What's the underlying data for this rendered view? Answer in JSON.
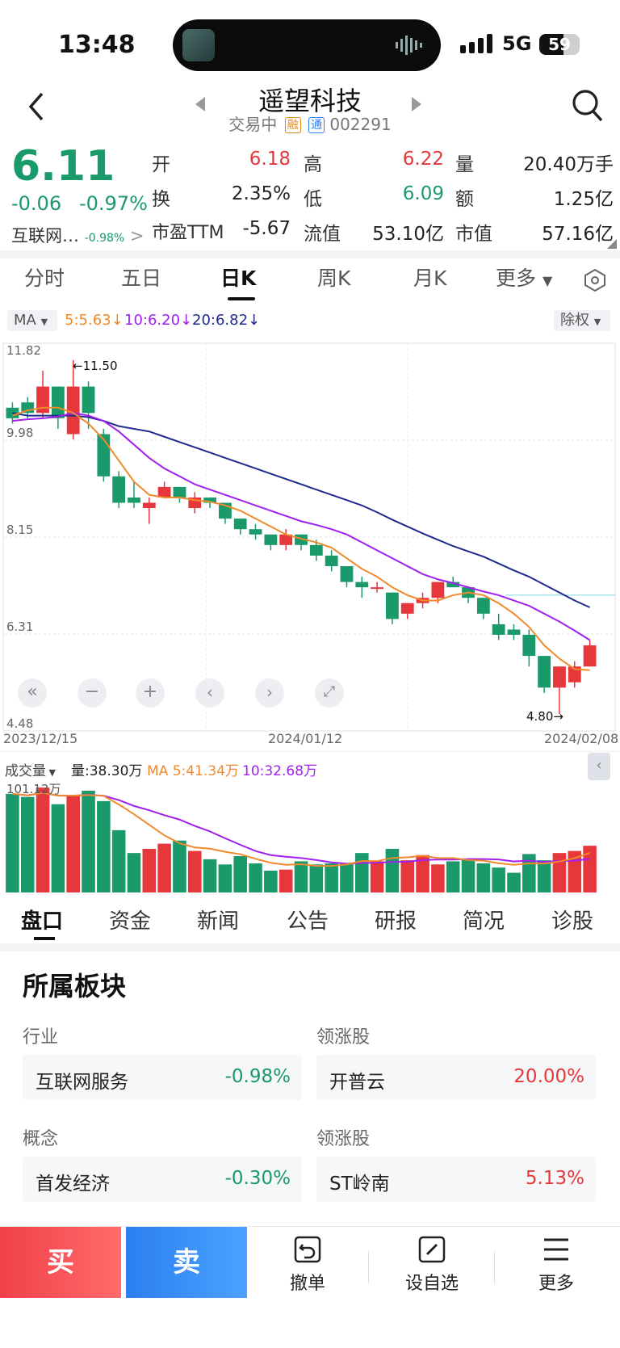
{
  "status": {
    "time": "13:48",
    "network": "5G",
    "battery": "59"
  },
  "header": {
    "title": "遥望科技",
    "state": "交易中",
    "badge_rong": "融",
    "badge_tong": "通",
    "code": "002291"
  },
  "quote": {
    "price": "6.11",
    "change": "-0.06",
    "change_pct": "-0.97%",
    "sector_name": "互联网…",
    "sector_pct": "-0.98%",
    "open_label": "开",
    "open": "6.18",
    "high_label": "高",
    "high": "6.22",
    "volume_label": "量",
    "volume": "20.40万手",
    "turnover_label": "换",
    "turnover": "2.35%",
    "low_label": "低",
    "low": "6.09",
    "amount_label": "额",
    "amount": "1.25亿",
    "pe_label": "市盈TTM",
    "pe": "-5.67",
    "float_cap_label": "流值",
    "float_cap": "53.10亿",
    "market_cap_label": "市值",
    "market_cap": "57.16亿"
  },
  "period_tabs": [
    "分时",
    "五日",
    "日K",
    "周K",
    "月K",
    "更多"
  ],
  "ma_bar": {
    "ma_label": "MA",
    "ma5": "5:5.63",
    "ma10": "10:6.20",
    "ma20": "20:6.82",
    "adjust": "除权"
  },
  "chart_data": {
    "type": "candlestick",
    "y_ticks": [
      "11.82",
      "9.98",
      "8.15",
      "6.31",
      "4.48"
    ],
    "x_ticks": [
      "2023/12/15",
      "2024/01/12",
      "2024/02/08"
    ],
    "high_marker": "11.50",
    "low_marker": "4.80",
    "ylim": [
      4.48,
      11.82
    ],
    "candles": [
      {
        "o": 10.6,
        "c": 10.4,
        "h": 10.7,
        "l": 10.3
      },
      {
        "o": 10.7,
        "c": 10.5,
        "h": 10.8,
        "l": 10.4
      },
      {
        "o": 10.5,
        "c": 11.0,
        "h": 11.3,
        "l": 10.4
      },
      {
        "o": 11.0,
        "c": 10.4,
        "h": 11.0,
        "l": 10.2
      },
      {
        "o": 10.1,
        "c": 11.0,
        "h": 11.5,
        "l": 10.0
      },
      {
        "o": 11.0,
        "c": 10.5,
        "h": 11.1,
        "l": 10.2
      },
      {
        "o": 10.1,
        "c": 9.3,
        "h": 10.2,
        "l": 9.2
      },
      {
        "o": 9.3,
        "c": 8.8,
        "h": 9.4,
        "l": 8.7
      },
      {
        "o": 8.9,
        "c": 8.8,
        "h": 9.2,
        "l": 8.7
      },
      {
        "o": 8.7,
        "c": 8.8,
        "h": 8.9,
        "l": 8.4
      },
      {
        "o": 8.9,
        "c": 9.1,
        "h": 9.2,
        "l": 8.9
      },
      {
        "o": 9.1,
        "c": 8.9,
        "h": 9.1,
        "l": 8.8
      },
      {
        "o": 8.7,
        "c": 8.9,
        "h": 9.0,
        "l": 8.6
      },
      {
        "o": 8.9,
        "c": 8.8,
        "h": 8.9,
        "l": 8.7
      },
      {
        "o": 8.8,
        "c": 8.5,
        "h": 8.8,
        "l": 8.4
      },
      {
        "o": 8.5,
        "c": 8.3,
        "h": 8.5,
        "l": 8.2
      },
      {
        "o": 8.3,
        "c": 8.2,
        "h": 8.4,
        "l": 8.1
      },
      {
        "o": 8.2,
        "c": 8.0,
        "h": 8.2,
        "l": 7.9
      },
      {
        "o": 8.0,
        "c": 8.2,
        "h": 8.3,
        "l": 7.9
      },
      {
        "o": 8.2,
        "c": 8.0,
        "h": 8.2,
        "l": 7.9
      },
      {
        "o": 8.0,
        "c": 7.8,
        "h": 8.1,
        "l": 7.7
      },
      {
        "o": 7.8,
        "c": 7.6,
        "h": 7.9,
        "l": 7.5
      },
      {
        "o": 7.6,
        "c": 7.3,
        "h": 7.6,
        "l": 7.2
      },
      {
        "o": 7.3,
        "c": 7.2,
        "h": 7.4,
        "l": 7.0
      },
      {
        "o": 7.2,
        "c": 7.2,
        "h": 7.3,
        "l": 7.1
      },
      {
        "o": 7.1,
        "c": 6.6,
        "h": 7.1,
        "l": 6.5
      },
      {
        "o": 6.7,
        "c": 6.9,
        "h": 6.9,
        "l": 6.6
      },
      {
        "o": 6.9,
        "c": 7.0,
        "h": 7.1,
        "l": 6.8
      },
      {
        "o": 7.0,
        "c": 7.3,
        "h": 7.3,
        "l": 6.9
      },
      {
        "o": 7.3,
        "c": 7.2,
        "h": 7.4,
        "l": 7.2
      },
      {
        "o": 7.2,
        "c": 7.0,
        "h": 7.2,
        "l": 6.9
      },
      {
        "o": 7.0,
        "c": 6.7,
        "h": 7.0,
        "l": 6.6
      },
      {
        "o": 6.5,
        "c": 6.3,
        "h": 6.7,
        "l": 6.2
      },
      {
        "o": 6.4,
        "c": 6.3,
        "h": 6.5,
        "l": 6.2
      },
      {
        "o": 6.3,
        "c": 5.9,
        "h": 6.4,
        "l": 5.7
      },
      {
        "o": 5.9,
        "c": 5.3,
        "h": 5.9,
        "l": 5.2
      },
      {
        "o": 5.3,
        "c": 5.7,
        "h": 5.7,
        "l": 4.8
      },
      {
        "o": 5.4,
        "c": 5.7,
        "h": 5.8,
        "l": 5.3
      },
      {
        "o": 5.7,
        "c": 6.1,
        "h": 6.2,
        "l": 5.7
      }
    ],
    "ma5": [
      10.45,
      10.55,
      10.6,
      10.6,
      10.5,
      10.3,
      10.0,
      9.6,
      9.2,
      8.95,
      8.9,
      8.9,
      8.85,
      8.82,
      8.75,
      8.65,
      8.5,
      8.35,
      8.2,
      8.12,
      8.05,
      7.95,
      7.75,
      7.55,
      7.4,
      7.2,
      7.05,
      6.95,
      6.95,
      7.05,
      7.1,
      7.05,
      6.9,
      6.7,
      6.45,
      6.1,
      5.85,
      5.65,
      5.63
    ],
    "ma10": [
      10.35,
      10.38,
      10.4,
      10.43,
      10.5,
      10.45,
      10.35,
      10.15,
      9.9,
      9.65,
      9.45,
      9.3,
      9.15,
      9.05,
      8.95,
      8.85,
      8.75,
      8.65,
      8.55,
      8.45,
      8.38,
      8.3,
      8.2,
      8.05,
      7.9,
      7.75,
      7.6,
      7.45,
      7.35,
      7.28,
      7.2,
      7.12,
      7.05,
      6.95,
      6.85,
      6.7,
      6.55,
      6.38,
      6.2
    ],
    "ma20": [
      10.5,
      10.45,
      10.45,
      10.45,
      10.45,
      10.42,
      10.35,
      10.25,
      10.2,
      10.15,
      10.05,
      9.95,
      9.85,
      9.75,
      9.65,
      9.55,
      9.45,
      9.35,
      9.25,
      9.15,
      9.05,
      8.95,
      8.85,
      8.75,
      8.62,
      8.48,
      8.35,
      8.22,
      8.1,
      7.98,
      7.88,
      7.78,
      7.65,
      7.52,
      7.4,
      7.25,
      7.1,
      6.95,
      6.82
    ]
  },
  "volume_bar": {
    "label": "成交量",
    "vol": "量:38.30万",
    "ma5": "MA 5:41.34万",
    "ma10": "10:32.68万",
    "max": "101.12万"
  },
  "volume_data": [
    95,
    92,
    101,
    85,
    93,
    98,
    88,
    60,
    38,
    42,
    47,
    50,
    40,
    32,
    27,
    35,
    28,
    21,
    22,
    30,
    27,
    28,
    28,
    38,
    30,
    42,
    31,
    36,
    27,
    30,
    32,
    28,
    24,
    19,
    37,
    31,
    38,
    40,
    45
  ],
  "bottom_tabs": [
    "盘口",
    "资金",
    "新闻",
    "公告",
    "研报",
    "简况",
    "诊股"
  ],
  "sector": {
    "title": "所属板块",
    "industry_label": "行业",
    "industry_name": "互联网服务",
    "industry_pct": "-0.98%",
    "lead_label1": "领涨股",
    "lead_name1": "开普云",
    "lead_pct1": "20.00%",
    "concept_label": "概念",
    "concept_name": "首发经济",
    "concept_pct": "-0.30%",
    "lead_label2": "领涨股",
    "lead_name2": "ST岭南",
    "lead_pct2": "5.13%"
  },
  "actions": {
    "buy": "买",
    "sell": "卖",
    "cancel": "撤单",
    "watch": "设自选",
    "more": "更多"
  },
  "colors": {
    "up": "#e6373b",
    "down": "#1a9a6a",
    "ma5": "#f08a2c",
    "ma10": "#a020f0",
    "ma20": "#1f2a8c"
  }
}
